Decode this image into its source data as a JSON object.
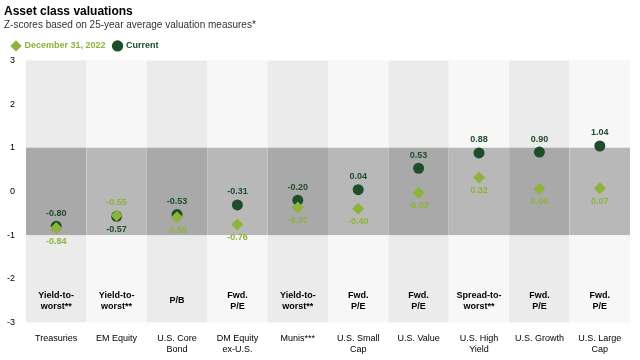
{
  "chart_data": {
    "type": "scatter",
    "title": "Asset class valuations",
    "subtitle": "Z-scores based on 25-year average valuation measures*",
    "categories": [
      "Treasuries",
      "EM Equity",
      "U.S. Core Bond",
      "DM Equity ex-U.S.",
      "Munis***",
      "U.S. Small Cap",
      "U.S. Value",
      "U.S. High Yield",
      "U.S. Growth",
      "U.S. Large Cap"
    ],
    "measures": [
      "Yield-to-worst**",
      "Yield-to-worst**",
      "P/B",
      "Fwd. P/E",
      "Yield-to-worst**",
      "Fwd. P/E",
      "Fwd. P/E",
      "Spread-to-worst**",
      "Fwd. P/E",
      "Fwd. P/E"
    ],
    "series": [
      {
        "name": "December 31, 2022",
        "color": "#8db33a",
        "marker": "diamond",
        "values": [
          -0.84,
          -0.55,
          -0.59,
          -0.76,
          -0.37,
          -0.4,
          -0.03,
          0.32,
          0.06,
          0.07
        ],
        "value_labels": [
          "-0.84",
          "-0.55",
          "-0.59",
          "-0.76",
          "-0.37",
          "-0.40",
          "-0.03",
          "0.32",
          "0.06",
          "0.07"
        ]
      },
      {
        "name": "Current",
        "color": "#1e4d2b",
        "marker": "circle",
        "values": [
          -0.8,
          -0.57,
          -0.53,
          -0.31,
          -0.2,
          0.04,
          0.53,
          0.88,
          0.9,
          1.04
        ],
        "value_labels": [
          "-0.80",
          "-0.57",
          "-0.53",
          "-0.31",
          "-0.20",
          "0.04",
          "0.53",
          "0.88",
          "0.90",
          "1.04"
        ]
      }
    ],
    "band": [
      -1,
      1
    ],
    "ylim": [
      -3,
      3
    ],
    "yticks": [
      -3,
      -2,
      -1,
      0,
      1,
      2,
      3
    ],
    "grid": false,
    "legend": "top-left",
    "data_labels": true
  }
}
